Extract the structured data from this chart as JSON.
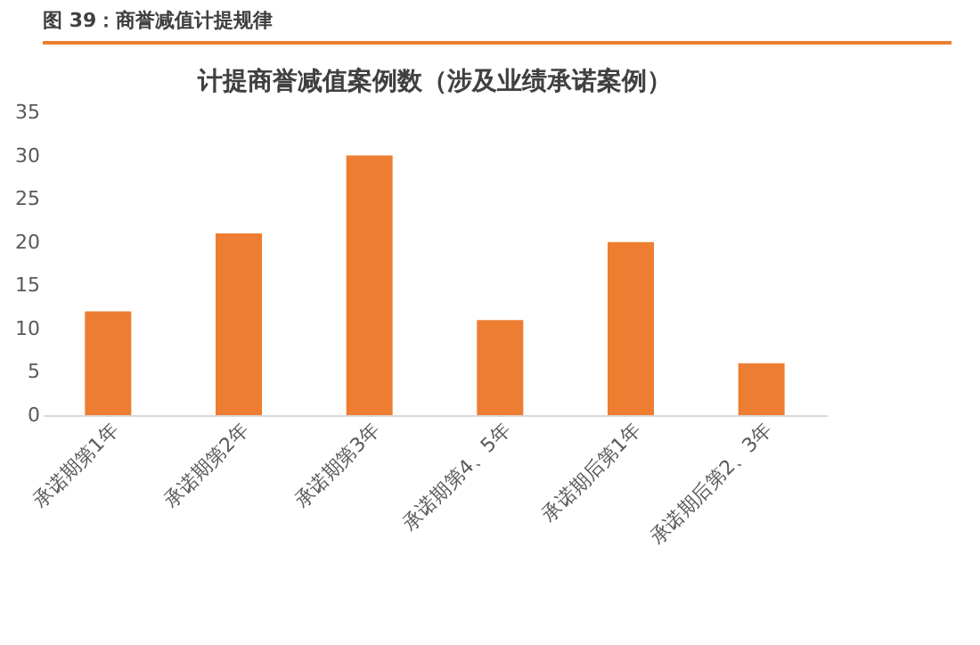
{
  "chart_data": {
    "type": "bar",
    "title": "计提商誉减值案例数（涉及业绩承诺案例）",
    "annotations": [
      "图 39：商誉减值计提规律"
    ],
    "categories": [
      "承诺期第1年",
      "承诺期第2年",
      "承诺期第3年",
      "承诺期第4、5年",
      "承诺期后第1年",
      "承诺期后第2、3年"
    ],
    "values": [
      12,
      21,
      30,
      11,
      20,
      6
    ],
    "color": "#ed7d31",
    "ylim": [
      0,
      35
    ],
    "yticks": [
      0,
      5,
      10,
      15,
      20,
      25,
      30,
      35
    ],
    "grid": false
  }
}
